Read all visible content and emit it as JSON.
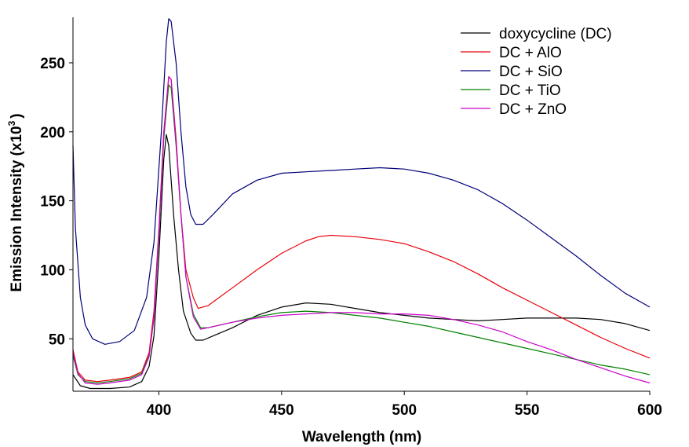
{
  "chart_data": {
    "type": "line",
    "title": "",
    "xlabel": "Wavelength (nm)",
    "ylabel_main": "Emission Intensity (x10",
    "ylabel_sup": "3",
    "ylabel_end": ")",
    "xlim": [
      365,
      600
    ],
    "ylim": [
      12,
      283
    ],
    "xticks": [
      400,
      450,
      500,
      550,
      600
    ],
    "yticks": [
      50,
      100,
      150,
      200,
      250
    ],
    "legend_position": "top-right",
    "grid": false,
    "series": [
      {
        "name": "doxycycline (DC)",
        "color": "#000000",
        "points": [
          [
            365,
            24
          ],
          [
            368,
            16
          ],
          [
            372,
            14
          ],
          [
            380,
            14
          ],
          [
            388,
            15
          ],
          [
            393,
            19
          ],
          [
            396,
            30
          ],
          [
            398,
            52
          ],
          [
            400,
            110
          ],
          [
            402,
            180
          ],
          [
            403,
            198
          ],
          [
            404,
            190
          ],
          [
            406,
            140
          ],
          [
            408,
            100
          ],
          [
            410,
            70
          ],
          [
            413,
            54
          ],
          [
            415,
            49
          ],
          [
            418,
            49
          ],
          [
            422,
            52
          ],
          [
            430,
            58
          ],
          [
            440,
            67
          ],
          [
            450,
            73
          ],
          [
            460,
            76
          ],
          [
            470,
            75
          ],
          [
            480,
            72
          ],
          [
            490,
            69
          ],
          [
            500,
            67
          ],
          [
            510,
            65
          ],
          [
            520,
            64
          ],
          [
            530,
            63
          ],
          [
            540,
            64
          ],
          [
            550,
            65
          ],
          [
            560,
            65
          ],
          [
            570,
            65
          ],
          [
            580,
            64
          ],
          [
            590,
            61
          ],
          [
            600,
            56
          ]
        ]
      },
      {
        "name": "DC + AlO",
        "color": "#e8000b",
        "points": [
          [
            365,
            42
          ],
          [
            367,
            26
          ],
          [
            370,
            20
          ],
          [
            375,
            19
          ],
          [
            380,
            20
          ],
          [
            388,
            22
          ],
          [
            393,
            26
          ],
          [
            396,
            40
          ],
          [
            398,
            70
          ],
          [
            400,
            130
          ],
          [
            402,
            200
          ],
          [
            404,
            240
          ],
          [
            405,
            238
          ],
          [
            407,
            195
          ],
          [
            409,
            140
          ],
          [
            411,
            100
          ],
          [
            414,
            80
          ],
          [
            416,
            72
          ],
          [
            420,
            74
          ],
          [
            430,
            87
          ],
          [
            440,
            100
          ],
          [
            450,
            112
          ],
          [
            460,
            121
          ],
          [
            465,
            124
          ],
          [
            470,
            125
          ],
          [
            480,
            124
          ],
          [
            490,
            122
          ],
          [
            500,
            119
          ],
          [
            510,
            113
          ],
          [
            520,
            106
          ],
          [
            530,
            97
          ],
          [
            540,
            87
          ],
          [
            550,
            78
          ],
          [
            560,
            69
          ],
          [
            570,
            60
          ],
          [
            580,
            51
          ],
          [
            590,
            43
          ],
          [
            600,
            36
          ]
        ]
      },
      {
        "name": "DC + SiO",
        "color": "#00007a",
        "points": [
          [
            365,
            190
          ],
          [
            366,
            130
          ],
          [
            368,
            80
          ],
          [
            370,
            60
          ],
          [
            373,
            50
          ],
          [
            378,
            46
          ],
          [
            384,
            48
          ],
          [
            390,
            56
          ],
          [
            395,
            80
          ],
          [
            398,
            120
          ],
          [
            401,
            200
          ],
          [
            403,
            265
          ],
          [
            404,
            282
          ],
          [
            405,
            280
          ],
          [
            407,
            250
          ],
          [
            409,
            200
          ],
          [
            411,
            160
          ],
          [
            413,
            140
          ],
          [
            415,
            133
          ],
          [
            418,
            133
          ],
          [
            422,
            140
          ],
          [
            430,
            155
          ],
          [
            440,
            165
          ],
          [
            450,
            170
          ],
          [
            460,
            171
          ],
          [
            470,
            172
          ],
          [
            480,
            173
          ],
          [
            490,
            174
          ],
          [
            500,
            173
          ],
          [
            510,
            170
          ],
          [
            520,
            165
          ],
          [
            530,
            158
          ],
          [
            540,
            148
          ],
          [
            550,
            136
          ],
          [
            560,
            123
          ],
          [
            570,
            110
          ],
          [
            580,
            96
          ],
          [
            590,
            83
          ],
          [
            600,
            73
          ]
        ]
      },
      {
        "name": "DC + TiO",
        "color": "#008000",
        "points": [
          [
            365,
            38
          ],
          [
            367,
            24
          ],
          [
            370,
            19
          ],
          [
            375,
            18
          ],
          [
            380,
            19
          ],
          [
            388,
            21
          ],
          [
            393,
            25
          ],
          [
            396,
            38
          ],
          [
            398,
            65
          ],
          [
            400,
            125
          ],
          [
            402,
            195
          ],
          [
            404,
            234
          ],
          [
            405,
            232
          ],
          [
            407,
            190
          ],
          [
            409,
            140
          ],
          [
            411,
            95
          ],
          [
            414,
            68
          ],
          [
            417,
            58
          ],
          [
            420,
            58
          ],
          [
            430,
            62
          ],
          [
            440,
            66
          ],
          [
            450,
            69
          ],
          [
            460,
            70
          ],
          [
            470,
            69
          ],
          [
            480,
            67
          ],
          [
            490,
            65
          ],
          [
            500,
            62
          ],
          [
            510,
            59
          ],
          [
            520,
            55
          ],
          [
            530,
            51
          ],
          [
            540,
            47
          ],
          [
            550,
            43
          ],
          [
            560,
            39
          ],
          [
            570,
            35
          ],
          [
            580,
            31
          ],
          [
            590,
            28
          ],
          [
            600,
            24
          ]
        ]
      },
      {
        "name": "DC + ZnO",
        "color": "#cc00cc",
        "points": [
          [
            365,
            40
          ],
          [
            367,
            25
          ],
          [
            370,
            18
          ],
          [
            375,
            17
          ],
          [
            380,
            18
          ],
          [
            388,
            20
          ],
          [
            393,
            24
          ],
          [
            396,
            37
          ],
          [
            398,
            66
          ],
          [
            400,
            128
          ],
          [
            402,
            198
          ],
          [
            404,
            240
          ],
          [
            405,
            238
          ],
          [
            407,
            192
          ],
          [
            409,
            140
          ],
          [
            411,
            95
          ],
          [
            414,
            66
          ],
          [
            417,
            57
          ],
          [
            420,
            58
          ],
          [
            430,
            62
          ],
          [
            440,
            65
          ],
          [
            450,
            67
          ],
          [
            460,
            68
          ],
          [
            470,
            69
          ],
          [
            480,
            69
          ],
          [
            490,
            68
          ],
          [
            500,
            68
          ],
          [
            510,
            67
          ],
          [
            520,
            64
          ],
          [
            530,
            60
          ],
          [
            540,
            55
          ],
          [
            550,
            48
          ],
          [
            560,
            42
          ],
          [
            570,
            35
          ],
          [
            580,
            29
          ],
          [
            590,
            23
          ],
          [
            600,
            18
          ]
        ]
      }
    ]
  }
}
